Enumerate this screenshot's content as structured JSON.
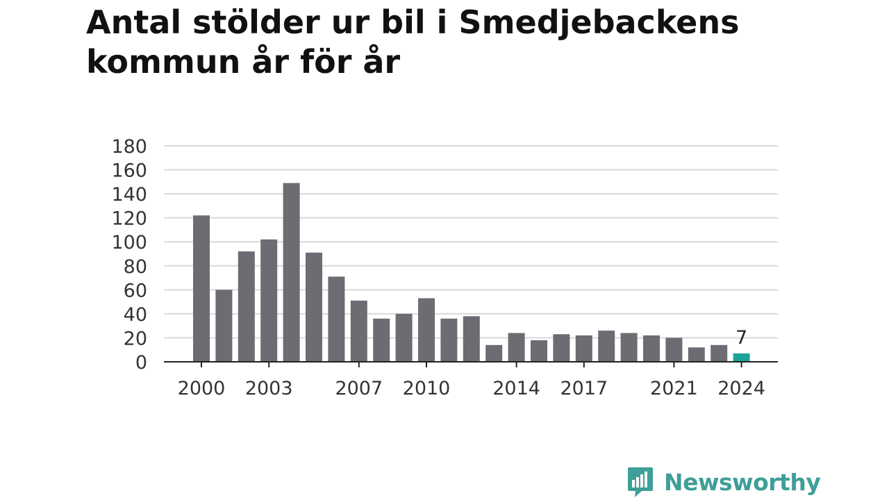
{
  "title": "Antal stölder ur bil i Smedjebackens kommun år för år",
  "brand": {
    "name": "Newsworthy",
    "logo_icon": "newsworthy-chart-bubble-icon",
    "color": "#3f9e98"
  },
  "chart_data": {
    "type": "bar",
    "categories": [
      "2000",
      "2001",
      "2002",
      "2003",
      "2004",
      "2005",
      "2006",
      "2007",
      "2008",
      "2009",
      "2010",
      "2011",
      "2012",
      "2013",
      "2014",
      "2015",
      "2016",
      "2017",
      "2018",
      "2019",
      "2020",
      "2021",
      "2022",
      "2023",
      "2024"
    ],
    "values": [
      122,
      60,
      92,
      102,
      149,
      91,
      71,
      51,
      36,
      40,
      53,
      36,
      38,
      14,
      24,
      18,
      23,
      22,
      26,
      24,
      22,
      20,
      12,
      14,
      7
    ],
    "x_tick_labels": [
      "2000",
      "2003",
      "2007",
      "2010",
      "2014",
      "2017",
      "2021",
      "2024"
    ],
    "y_ticks": [
      0,
      20,
      40,
      60,
      80,
      100,
      120,
      140,
      160,
      180
    ],
    "ylim": [
      0,
      180
    ],
    "highlight": {
      "category": "2024",
      "label": "7",
      "color": "#1aa39a"
    },
    "bar_color": "#6d6c72",
    "grid": true,
    "xlabel": "",
    "ylabel": ""
  }
}
